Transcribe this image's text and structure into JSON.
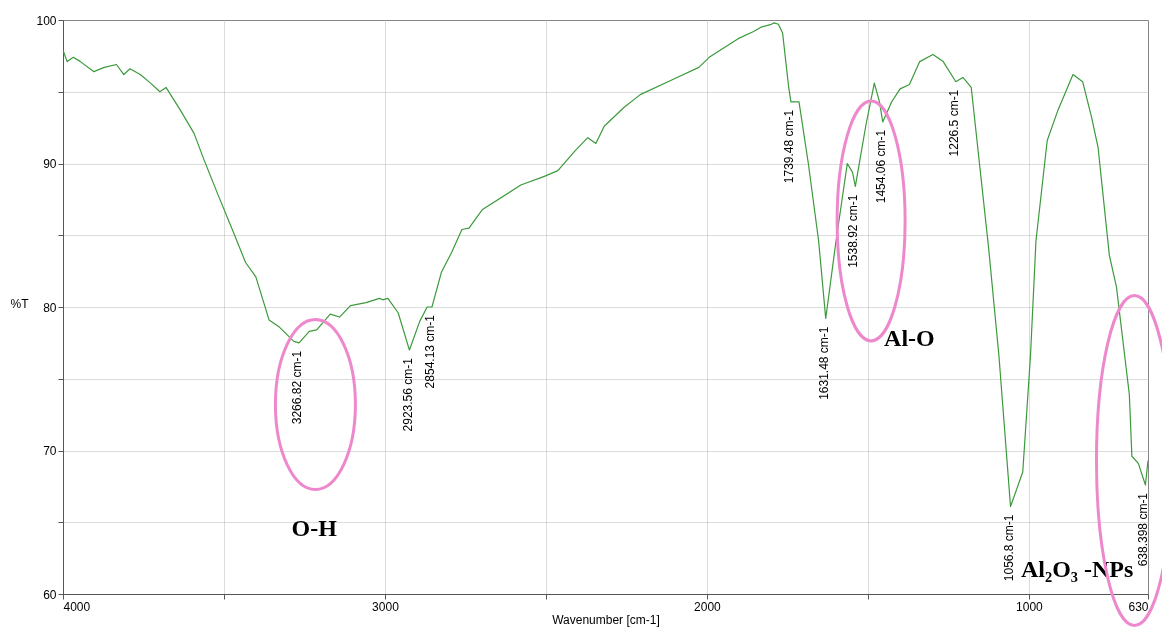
{
  "chart_data": {
    "type": "line",
    "xlabel": "Wavenumber [cm-1]",
    "ylabel": "%T",
    "x": [
      4000,
      3987,
      3968,
      3946,
      3904,
      3872,
      3834,
      3811,
      3792,
      3760,
      3728,
      3699,
      3680,
      3635,
      3593,
      3561,
      3520,
      3465,
      3433,
      3401,
      3360,
      3328,
      3283,
      3267,
      3235,
      3212,
      3170,
      3141,
      3107,
      3059,
      3017,
      3007,
      2991,
      2959,
      2924,
      2892,
      2869,
      2854,
      2825,
      2793,
      2761,
      2739,
      2697,
      2578,
      2505,
      2463,
      2409,
      2370,
      2345,
      2319,
      2258,
      2207,
      2111,
      2025,
      1993,
      1903,
      1855,
      1832,
      1800,
      1791,
      1778,
      1765,
      1746,
      1739,
      1714,
      1685,
      1653,
      1631,
      1599,
      1564,
      1548,
      1539,
      1506,
      1480,
      1464,
      1454,
      1426,
      1400,
      1371,
      1339,
      1298,
      1266,
      1227,
      1205,
      1179,
      1125,
      1093,
      1070,
      1057,
      1019,
      995,
      978,
      943,
      910,
      863,
      833,
      805,
      785,
      750,
      728,
      688,
      680,
      660,
      638,
      630
    ],
    "series": [
      {
        "color": "#3c9a3c",
        "values": [
          97.9,
          97.1,
          97.4,
          97.1,
          96.4,
          96.7,
          96.9,
          96.2,
          96.6,
          96.2,
          95.6,
          95.0,
          95.3,
          93.7,
          92.1,
          90.2,
          87.9,
          84.9,
          83.1,
          82.1,
          79.1,
          78.6,
          77.6,
          77.5,
          78.3,
          78.4,
          79.5,
          79.3,
          80.1,
          80.3,
          80.6,
          80.5,
          80.6,
          79.6,
          77.0,
          79.0,
          80.0,
          80.0,
          82.4,
          83.8,
          85.4,
          85.5,
          86.8,
          88.5,
          89.1,
          89.5,
          90.9,
          91.8,
          91.4,
          92.6,
          93.9,
          94.8,
          95.8,
          96.7,
          97.4,
          98.7,
          99.2,
          99.5,
          99.7,
          99.8,
          99.7,
          99.1,
          95.3,
          94.3,
          94.3,
          90.0,
          84.6,
          79.2,
          84.6,
          90.0,
          89.4,
          88.4,
          92.7,
          95.6,
          94.3,
          92.9,
          94.3,
          95.2,
          95.5,
          97.1,
          97.6,
          97.1,
          95.7,
          96.0,
          95.3,
          84.1,
          76.6,
          69.9,
          66.1,
          68.5,
          76.6,
          84.6,
          91.6,
          93.7,
          96.2,
          95.7,
          93.2,
          91.1,
          83.6,
          81.4,
          73.9,
          69.6,
          69.1,
          67.6,
          69.3
        ]
      }
    ],
    "xlim": [
      4000,
      630
    ],
    "xticks": [
      4000,
      {
        "value": 3500,
        "label": null
      },
      3000,
      {
        "value": 2500,
        "label": null
      },
      2000,
      {
        "value": 1500,
        "label": null
      },
      1000,
      630
    ],
    "ylim": [
      60,
      100
    ],
    "yticks": [
      60,
      {
        "value": 65,
        "label": null
      },
      70,
      {
        "value": 75,
        "label": null
      },
      80,
      {
        "value": 85,
        "label": null
      },
      90,
      {
        "value": 95,
        "label": null
      },
      100
    ],
    "grid": true,
    "annotations": [
      {
        "text": "3266.82 cm-1",
        "x": 3266.82,
        "y": 77.5
      },
      {
        "text": "2923.56 cm-1",
        "x": 2923.56,
        "y": 77.0
      },
      {
        "text": "2854.13 cm-1",
        "x": 2854.13,
        "y": 80.0
      },
      {
        "text": "1739.48 cm-1",
        "x": 1739.48,
        "y": 94.3
      },
      {
        "text": "1631.48 cm-1",
        "x": 1631.48,
        "y": 79.2
      },
      {
        "text": "1538.92 cm-1",
        "x": 1538.92,
        "y": 88.4
      },
      {
        "text": "1454.06 cm-1",
        "x": 1454.06,
        "y": 92.9
      },
      {
        "text": "1226.5 cm-1",
        "x": 1226.5,
        "y": 95.7
      },
      {
        "text": "1056.8 cm-1",
        "x": 1056.8,
        "y": 66.1
      },
      {
        "text": "638.398 cm-1",
        "x": 638.398,
        "y": 67.6
      },
      "O-H",
      "Al-O",
      "Al₂O₃ -NPs"
    ]
  }
}
